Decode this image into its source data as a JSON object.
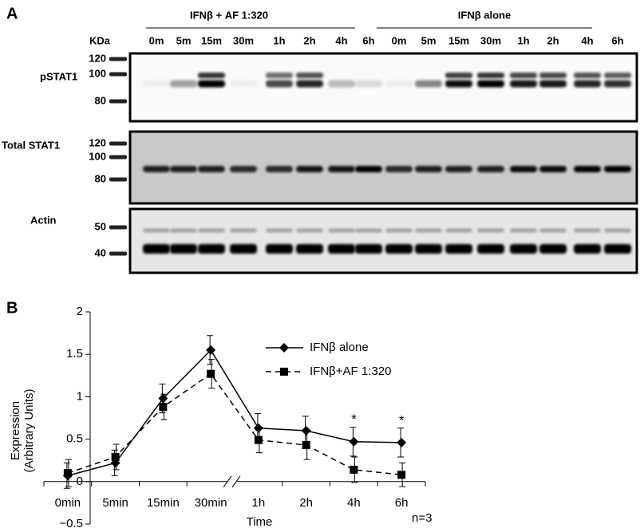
{
  "panel_a": {
    "label": "A",
    "kda_label": "KDa",
    "groups": [
      {
        "label": "IFNβ + AF 1:320",
        "lanes": [
          "0m",
          "5m",
          "15m",
          "30m",
          "1h",
          "2h",
          "4h",
          "6h"
        ]
      },
      {
        "label": "IFNβ alone",
        "lanes": [
          "0m",
          "5m",
          "15m",
          "30m",
          "1h",
          "2h",
          "4h",
          "6h"
        ]
      }
    ],
    "blots": [
      {
        "label": "pSTAT1",
        "markers": [
          "120",
          "100",
          "80"
        ]
      },
      {
        "label": "Total STAT1",
        "markers": [
          "120",
          "100",
          "80"
        ]
      },
      {
        "label": "Actin",
        "markers": [
          "50",
          "40"
        ]
      }
    ]
  },
  "chart_data": {
    "type": "line",
    "panel_label": "B",
    "x_label": "Time",
    "y_label": [
      "Expression",
      "(Arbitrary Units)"
    ],
    "note": "n=3",
    "categories": [
      "0min",
      "5min",
      "15min",
      "30min",
      "1h",
      "2h",
      "4h",
      "6h"
    ],
    "series": [
      {
        "name": "IFNβ alone",
        "color": "#000000",
        "marker": "diamond",
        "dash": "solid",
        "values": [
          0.07,
          0.22,
          0.98,
          1.55,
          0.63,
          0.6,
          0.47,
          0.46
        ],
        "errors": [
          0.15,
          0.15,
          0.17,
          0.17,
          0.17,
          0.17,
          0.17,
          0.17
        ]
      },
      {
        "name": "IFNβ+AF 1:320",
        "color": "#000000",
        "marker": "square",
        "dash": "dashed",
        "values": [
          0.1,
          0.29,
          0.88,
          1.27,
          0.49,
          0.43,
          0.14,
          0.08
        ],
        "errors": [
          0.16,
          0.15,
          0.15,
          0.17,
          0.15,
          0.17,
          0.15,
          0.14
        ]
      }
    ],
    "annotations": [
      {
        "text": "*",
        "category": 6
      },
      {
        "text": "*",
        "category": 7
      }
    ],
    "ylim": [
      -0.5,
      2
    ],
    "yticks": [
      {
        "value": -0.5,
        "label": "−0.5"
      },
      0,
      0.5,
      1,
      1.5,
      2
    ]
  }
}
